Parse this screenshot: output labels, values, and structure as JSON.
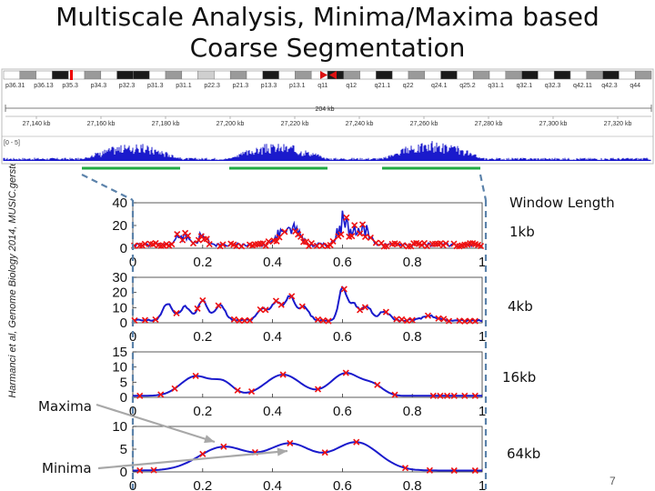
{
  "title_line1": "Multiscale Analysis, Minima/Maxima based",
  "title_line2": "Coarse Segmentation",
  "side_credit": "Harmanci et al, Genome Biology 2014, MUSIC.gersteinlab.org",
  "window_length_label": "Window Length",
  "annot_maxima": "Maxima",
  "annot_minima": "Minima",
  "page_number": "7",
  "genome_browser": {
    "bands": [
      "p36.31",
      "p36.13",
      "p35.3",
      "p34.3",
      "p32.3",
      "p31.3",
      "p31.1",
      "p22.3",
      "p21.3",
      "p13.3",
      "p13.1",
      "q11",
      "q12",
      "q21.1",
      "q22",
      "q24.1",
      "q25.2",
      "q31.1",
      "q32.1",
      "q32.3",
      "q42.11",
      "q42.3",
      "q44"
    ],
    "scale_label": "204 kb",
    "coords": [
      "27,140 kb",
      "27,160 kb",
      "27,180 kb",
      "27,200 kb",
      "27,220 kb",
      "27,240 kb",
      "27,260 kb",
      "27,280 kb",
      "27,300 kb",
      "27,320 kb"
    ],
    "track_label": "[0 - 5]"
  },
  "colors": {
    "signal": "#1a1acc",
    "marker": "#ee1111",
    "segment": "#22aa44",
    "dashed": "#5b82aa",
    "arrow": "#a8a8a8"
  },
  "chart_data": [
    {
      "type": "line",
      "series_label": "1kb",
      "ylim": [
        0,
        40
      ],
      "yticks": [
        "40",
        "20",
        "0"
      ],
      "xlim": [
        0,
        1
      ],
      "xticks": [
        "0",
        "0.2",
        "0.4",
        "0.6",
        "0.8",
        "1"
      ],
      "marker": "x",
      "shape": "noisy"
    },
    {
      "type": "line",
      "series_label": "4kb",
      "ylim": [
        0,
        30
      ],
      "yticks": [
        "30",
        "20",
        "10",
        "0"
      ],
      "xlim": [
        0,
        1
      ],
      "xticks": [
        "0",
        "0.2",
        "0.4",
        "0.6",
        "0.8",
        "1"
      ],
      "marker": "x",
      "shape": "bumpy"
    },
    {
      "type": "line",
      "series_label": "16kb",
      "ylim": [
        0,
        15
      ],
      "yticks": [
        "15",
        "10",
        "5",
        "0"
      ],
      "xlim": [
        0,
        1
      ],
      "xticks": [
        "0",
        "0.2",
        "0.4",
        "0.6",
        "0.8",
        "1"
      ],
      "marker": "x",
      "shape": "smooth"
    },
    {
      "type": "line",
      "series_label": "64kb",
      "ylim": [
        0,
        10
      ],
      "yticks": [
        "10",
        "5",
        "0"
      ],
      "xlim": [
        0,
        1
      ],
      "xticks": [
        "0",
        "0.2",
        "0.4",
        "0.6",
        "0.8",
        "1"
      ],
      "marker": "x",
      "shape": "verysmooth"
    }
  ]
}
